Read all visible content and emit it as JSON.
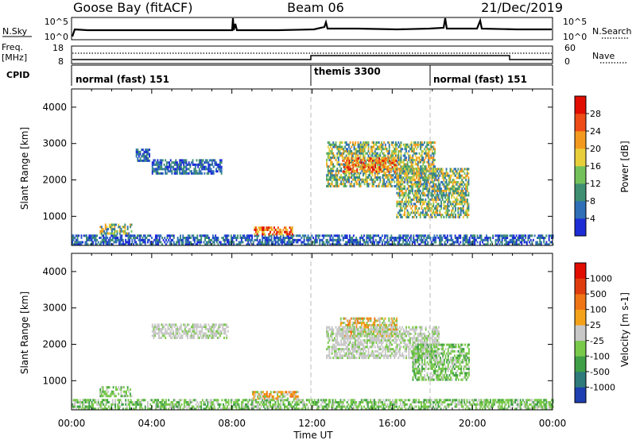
{
  "header": {
    "station": "Goose Bay (fitACF)",
    "beam": "Beam 06",
    "date": "21/Dec/2019"
  },
  "noise_panel": {
    "left_label": "N.Sky",
    "left_ticks": [
      "10^5",
      "10^0"
    ],
    "right_ticks": [
      "10^5",
      "10^0"
    ],
    "right_label": "N.Search"
  },
  "freq_panel": {
    "left_label": "Freq.",
    "left_unit": "[MHz]",
    "left_ticks": [
      "18",
      "8"
    ],
    "right_ticks": [
      "60",
      "0"
    ],
    "right_label": "Nave"
  },
  "cpid_panel": {
    "label": "CPID",
    "segments": [
      {
        "name": "normal (fast) 151",
        "start": 0,
        "end": 12
      },
      {
        "name": "themis 3300",
        "start": 12,
        "end": 18
      },
      {
        "name": "normal (fast) 151",
        "start": 18,
        "end": 24
      }
    ]
  },
  "x_axis": {
    "label": "Time UT",
    "ticks": [
      "00:00",
      "04:00",
      "08:00",
      "12:00",
      "16:00",
      "20:00",
      "00:00"
    ],
    "range_hours": [
      0,
      24
    ]
  },
  "chart_data": [
    {
      "type": "heatmap",
      "title": "Power",
      "ylabel": "Slant Range [km]",
      "yticks": [
        "1000",
        "2000",
        "3000",
        "4000"
      ],
      "ylim": [
        200,
        4500
      ],
      "colorbar": {
        "label": "Power [dB]",
        "ticks": [
          "4",
          "8",
          "12",
          "16",
          "20",
          "24",
          "28"
        ],
        "colors": [
          "#1d2dd6",
          "#2f6fb7",
          "#3f8f73",
          "#73c15a",
          "#e8cf3a",
          "#f39a1e",
          "#ee4b17",
          "#e00d00"
        ]
      },
      "regions": [
        {
          "t0": 0.0,
          "t1": 24.0,
          "r0": 200,
          "r1": 470,
          "level": "low"
        },
        {
          "t0": 9.1,
          "t1": 11.0,
          "r0": 480,
          "r1": 720,
          "level": "high"
        },
        {
          "t0": 1.4,
          "t1": 3.0,
          "r0": 500,
          "r1": 760,
          "level": "mid"
        },
        {
          "t0": 4.0,
          "t1": 7.5,
          "r0": 2150,
          "r1": 2550,
          "level": "low"
        },
        {
          "t0": 3.2,
          "t1": 3.9,
          "r0": 2500,
          "r1": 2850,
          "level": "low"
        },
        {
          "t0": 12.7,
          "t1": 18.1,
          "r0": 1800,
          "r1": 3050,
          "level": "mid"
        },
        {
          "t0": 13.5,
          "t1": 16.2,
          "r0": 2200,
          "r1": 2600,
          "level": "high"
        },
        {
          "t0": 16.2,
          "t1": 19.8,
          "r0": 950,
          "r1": 2300,
          "level": "mid"
        }
      ]
    },
    {
      "type": "heatmap",
      "title": "Velocity",
      "ylabel": "Slant Range [km]",
      "yticks": [
        "1000",
        "2000",
        "3000",
        "4000"
      ],
      "ylim": [
        200,
        4500
      ],
      "colorbar": {
        "label": "Velocity [m s-1]",
        "ticks": [
          "1000",
          "500",
          "100",
          "25",
          "-25",
          "-100",
          "-500",
          "-1000"
        ],
        "colors": [
          "#1d3fb0",
          "#2f7a7a",
          "#3f9f46",
          "#79c94b",
          "#c8c8c8",
          "#f4a21a",
          "#f07515",
          "#e03d0e",
          "#e00d00"
        ]
      },
      "regions": [
        {
          "t0": 0.0,
          "t1": 24.0,
          "r0": 200,
          "r1": 470,
          "level": "green"
        },
        {
          "t0": 9.0,
          "t1": 11.4,
          "r0": 480,
          "r1": 700,
          "level": "orange"
        },
        {
          "t0": 1.4,
          "t1": 3.0,
          "r0": 550,
          "r1": 800,
          "level": "green"
        },
        {
          "t0": 4.0,
          "t1": 7.8,
          "r0": 2150,
          "r1": 2550,
          "level": "gray"
        },
        {
          "t0": 13.4,
          "t1": 16.2,
          "r0": 2200,
          "r1": 2700,
          "level": "orange"
        },
        {
          "t0": 12.7,
          "t1": 18.3,
          "r0": 1600,
          "r1": 2500,
          "level": "gray"
        },
        {
          "t0": 17.0,
          "t1": 19.8,
          "r0": 1000,
          "r1": 2000,
          "level": "green"
        }
      ]
    }
  ]
}
